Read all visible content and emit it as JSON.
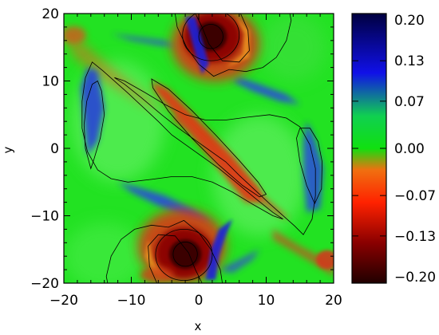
{
  "chart_data": {
    "type": "heatmap",
    "title": "",
    "xlabel": "x",
    "ylabel": "y",
    "xlim": [
      -20,
      20
    ],
    "ylim": [
      -20,
      20
    ],
    "xticks": [
      -20,
      -10,
      0,
      10,
      20
    ],
    "yticks": [
      -20,
      -10,
      0,
      10,
      20
    ],
    "xtick_labels": [
      "−20",
      "−10",
      "0",
      "10",
      "20"
    ],
    "ytick_labels": [
      "−20",
      "−10",
      "0",
      "10",
      "20"
    ],
    "grid": false,
    "colorbar": {
      "range": [
        -0.2,
        0.2
      ],
      "tick_values": [
        0.2,
        0.13,
        0.07,
        0.0,
        -0.07,
        -0.13,
        -0.2
      ],
      "tick_labels": [
        "0.20",
        "0.13",
        "0.07",
        "0.00",
        "−0.07",
        "−0.13",
        "−0.20"
      ],
      "colors": [
        "#200000",
        "#8a0000",
        "#ff2200",
        "#f07010",
        "#10e010",
        "#10d050",
        "#1010e8",
        "#000040"
      ],
      "stops": [
        0.0,
        0.15,
        0.3,
        0.42,
        0.5,
        0.62,
        0.78,
        1.0
      ]
    },
    "features": {
      "vortex_top": [
        1.8,
        16.5
      ],
      "vortex_bottom": [
        -2.0,
        -15.7
      ],
      "band_orientation": "diagonal from top-left to bottom-right"
    }
  }
}
